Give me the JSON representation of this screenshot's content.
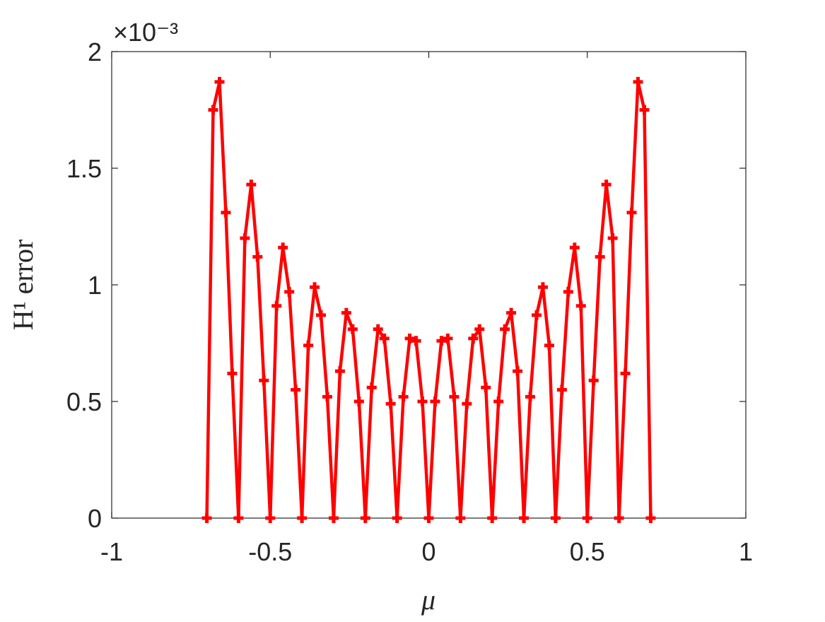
{
  "chart_data": {
    "type": "line",
    "y_multiplier": "×10⁻³",
    "xlabel": "μ",
    "ylabel": "H¹ error",
    "x": [
      -0.7,
      -0.68,
      -0.66,
      -0.64,
      -0.62,
      -0.6,
      -0.58,
      -0.56,
      -0.54,
      -0.52,
      -0.5,
      -0.48,
      -0.46,
      -0.44,
      -0.42,
      -0.4,
      -0.38,
      -0.36,
      -0.34,
      -0.32,
      -0.3,
      -0.28,
      -0.26,
      -0.24,
      -0.22,
      -0.2,
      -0.18,
      -0.16,
      -0.14,
      -0.12,
      -0.1,
      -0.08,
      -0.06,
      -0.04,
      -0.02,
      0,
      0.02,
      0.04,
      0.06,
      0.08,
      0.1,
      0.12,
      0.14,
      0.16,
      0.18,
      0.2,
      0.22,
      0.24,
      0.26,
      0.28,
      0.3,
      0.32,
      0.34,
      0.36,
      0.38,
      0.4,
      0.42,
      0.44,
      0.46,
      0.48,
      0.5,
      0.52,
      0.54,
      0.56,
      0.58,
      0.6,
      0.62,
      0.64,
      0.66,
      0.68,
      0.7
    ],
    "series": [
      {
        "color": "#ff0000",
        "marker": "+",
        "values": [
          0,
          1.75,
          1.87,
          1.31,
          0.62,
          0,
          1.2,
          1.43,
          1.12,
          0.59,
          0,
          0.91,
          1.16,
          0.97,
          0.55,
          0,
          0.74,
          0.99,
          0.87,
          0.52,
          0,
          0.63,
          0.88,
          0.81,
          0.5,
          0,
          0.56,
          0.81,
          0.77,
          0.49,
          0,
          0.52,
          0.77,
          0.76,
          0.5,
          0,
          0.5,
          0.76,
          0.77,
          0.52,
          0,
          0.49,
          0.77,
          0.81,
          0.56,
          0,
          0.5,
          0.81,
          0.88,
          0.63,
          0,
          0.52,
          0.87,
          0.99,
          0.74,
          0,
          0.55,
          0.97,
          1.16,
          0.91,
          0,
          0.59,
          1.12,
          1.43,
          1.2,
          0,
          0.62,
          1.31,
          1.87,
          1.75,
          0
        ]
      }
    ],
    "xlim": [
      -1,
      1
    ],
    "xticks": [
      -1,
      -0.5,
      0,
      0.5,
      1
    ],
    "ylim": [
      0,
      2
    ],
    "yticks": [
      0,
      0.5,
      1,
      1.5,
      2
    ],
    "grid": false
  }
}
